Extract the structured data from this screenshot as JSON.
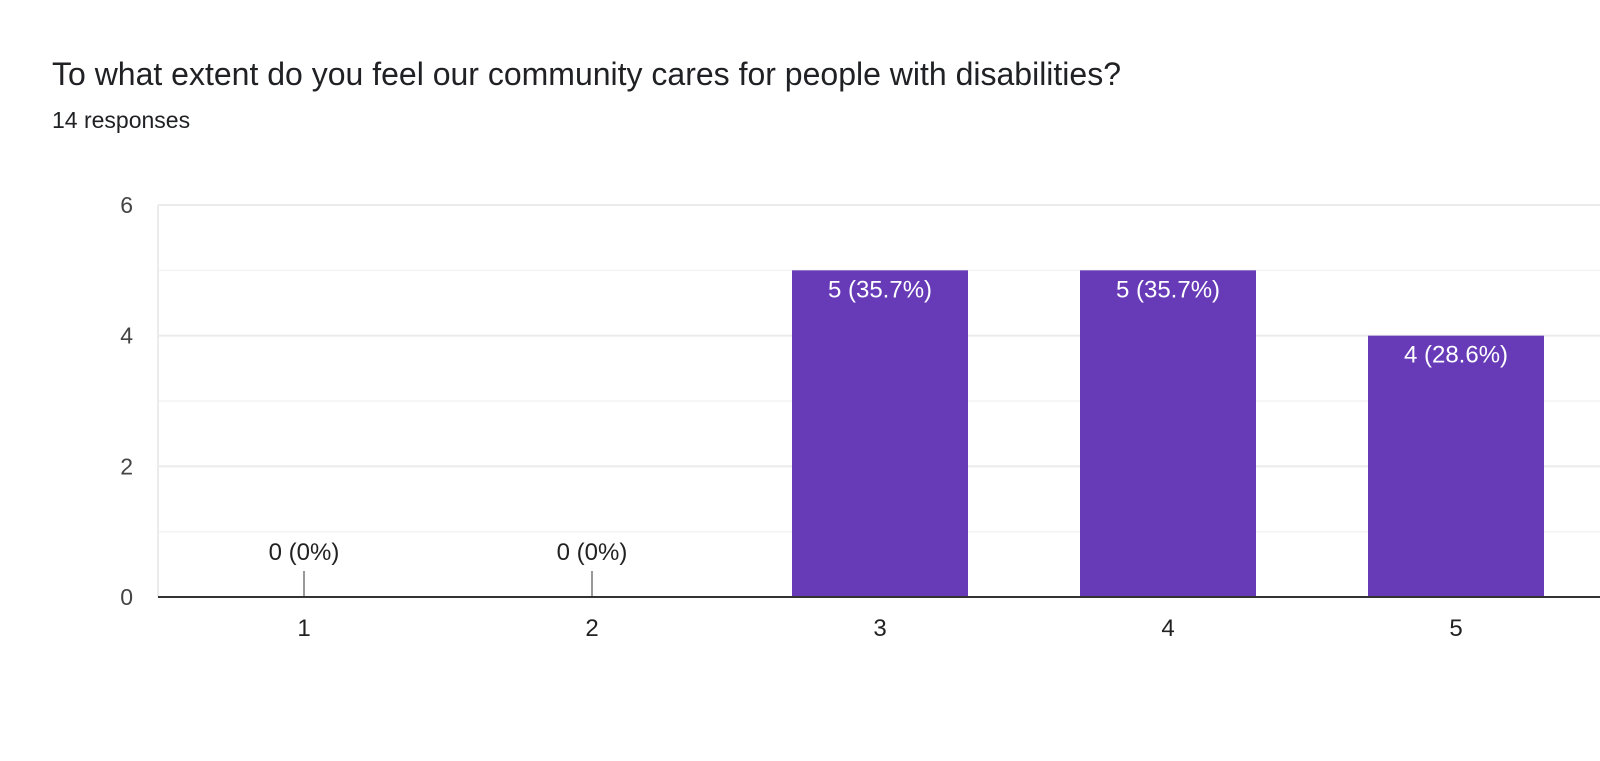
{
  "question": {
    "title": "To what extent do you feel our community cares for people with disabilities?",
    "responses": "14 responses"
  },
  "colors": {
    "bar": "#673ab7",
    "grid": "#ebebeb",
    "minor_grid": "#f3f3f3",
    "axis": "#333333",
    "tick_text": "#444444",
    "zero_marker": "#999999"
  },
  "chart_data": {
    "type": "bar",
    "categories": [
      "1",
      "2",
      "3",
      "4",
      "5"
    ],
    "values": [
      0,
      0,
      5,
      5,
      4
    ],
    "data_labels": [
      "0 (0%)",
      "0 (0%)",
      "5 (35.7%)",
      "5 (35.7%)",
      "4 (28.6%)"
    ],
    "y_ticks": [
      "0",
      "2",
      "4",
      "6"
    ],
    "ylim": [
      0,
      6
    ],
    "grid": true,
    "legend": "none",
    "title": "",
    "xlabel": "",
    "ylabel": ""
  }
}
